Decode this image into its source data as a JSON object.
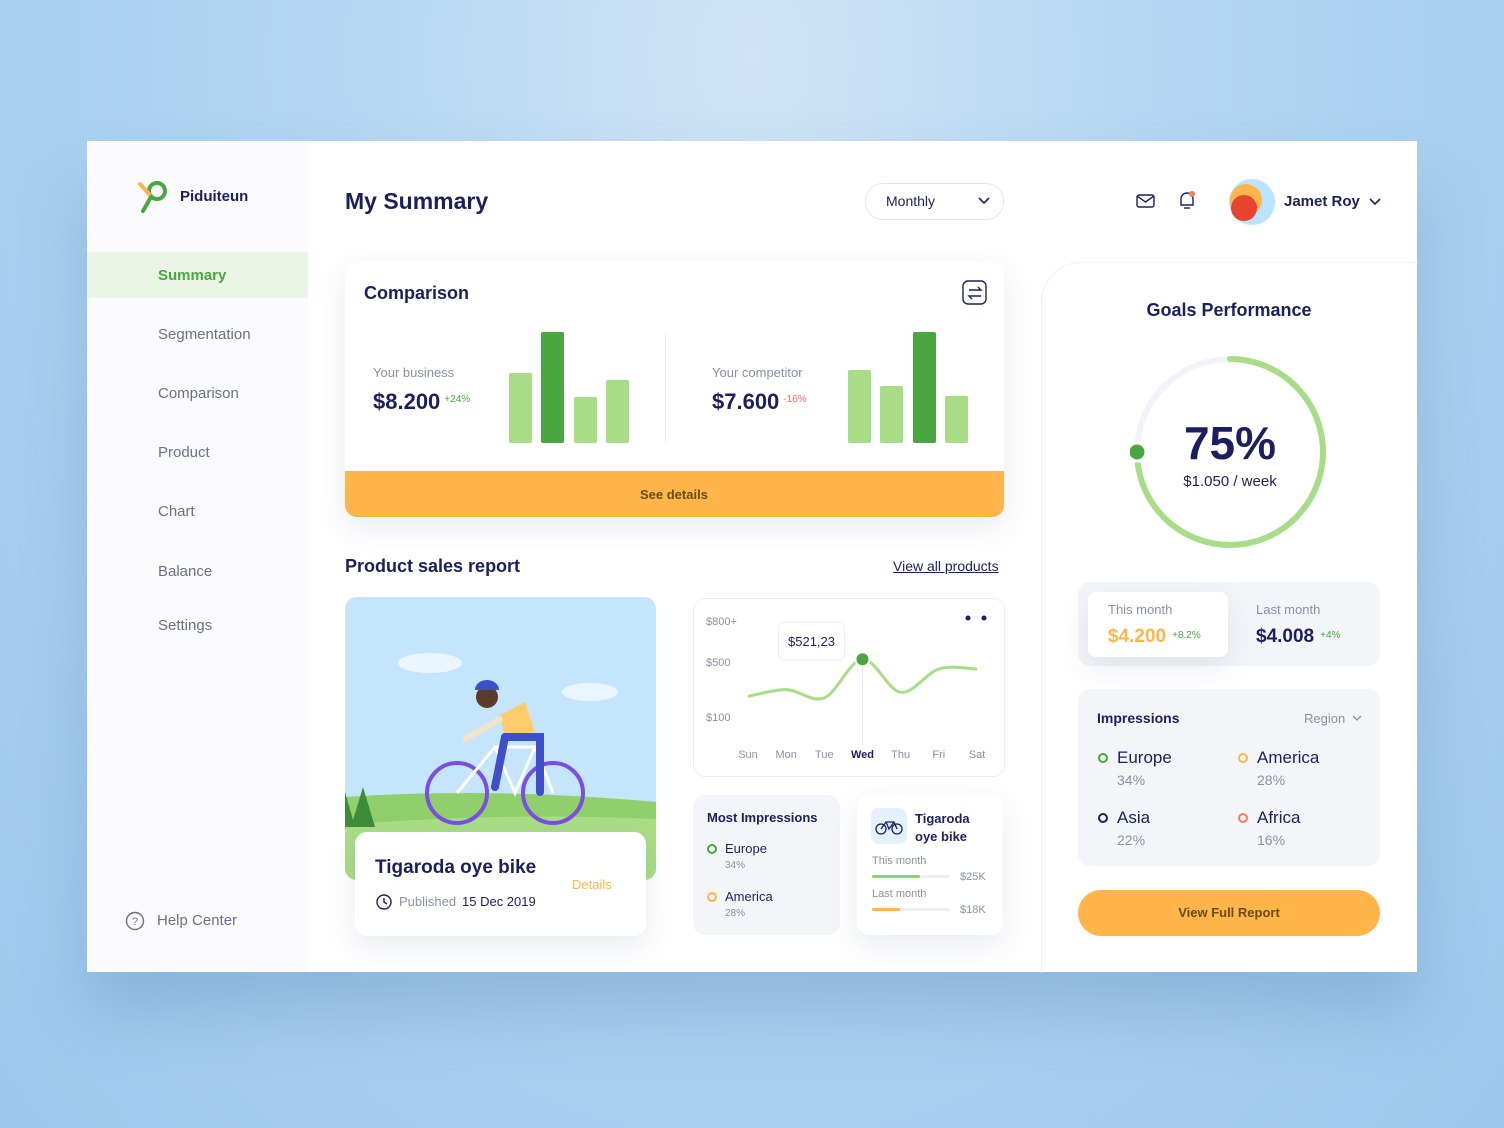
{
  "brand": "Piduiteun",
  "nav": {
    "items": [
      "Summary",
      "Segmentation",
      "Comparison",
      "Product",
      "Chart",
      "Balance",
      "Settings"
    ],
    "active": 0,
    "help": "Help Center"
  },
  "header": {
    "title": "My Summary",
    "period": "Monthly",
    "user": "Jamet Roy"
  },
  "comparison": {
    "title": "Comparison",
    "groups": [
      {
        "label": "Your business",
        "value": "$8.200",
        "change": "+24%",
        "bars": [
          70,
          111,
          46,
          63
        ],
        "highlight": 1
      },
      {
        "label": "Your competitor",
        "value": "$7.600",
        "change": "-16%",
        "bars": [
          73,
          57,
          111,
          47
        ],
        "highlight": 2
      }
    ],
    "action": "See details"
  },
  "sales": {
    "title": "Product sales report",
    "link": "View all products",
    "product": {
      "name": "Tigaroda oye bike",
      "published": "Published",
      "date": "15 Dec 2019",
      "action": "Details"
    },
    "chart": {
      "type": "line",
      "categories": [
        "Sun",
        "Mon",
        "Tue",
        "Wed",
        "Thu",
        "Fri",
        "Sat"
      ],
      "values": [
        250,
        300,
        240,
        521.23,
        280,
        450,
        450
      ],
      "value_labels": [
        null,
        null,
        null,
        "$521,23",
        null,
        null,
        null
      ],
      "highlight": 3,
      "ylim": [
        0,
        800
      ],
      "yticks": [
        {
          "value": 100,
          "label": "$100"
        },
        {
          "value": 500,
          "label": "$500"
        },
        {
          "value": 800,
          "label": "$800+"
        }
      ],
      "color": "#a8dc86"
    },
    "most_impressions": {
      "title": "Most Impressions",
      "items": [
        {
          "name": "Europe",
          "share": "34%",
          "color": "#4aa640"
        },
        {
          "name": "America",
          "share": "28%",
          "color": "#ffb54a"
        }
      ]
    },
    "product_card": {
      "name": "Tigaroda oye bike",
      "rows": [
        {
          "label": "This month",
          "value": "$25K",
          "fill": 62,
          "color": "#8bd36b"
        },
        {
          "label": "Last month",
          "value": "$18K",
          "fill": 36,
          "color": "#ffb54a"
        }
      ]
    }
  },
  "goals": {
    "title": "Goals Performance",
    "percent": {
      "value": 75,
      "label": "75%"
    },
    "rate": "$1.050 / week",
    "periods": [
      {
        "label": "This month",
        "value": "$4.200",
        "change": "+8.2%"
      },
      {
        "label": "Last month",
        "value": "$4.008",
        "change": "+4%"
      }
    ]
  },
  "impressions": {
    "title": "Impressions",
    "filter": "Region",
    "items": [
      {
        "name": "Europe",
        "share": "34%",
        "color": "#4aa640"
      },
      {
        "name": "America",
        "share": "28%",
        "color": "#ffb54a"
      },
      {
        "name": "Asia",
        "share": "22%",
        "color": "#1b1f5e"
      },
      {
        "name": "Africa",
        "share": "16%",
        "color": "#ff7a5a"
      }
    ]
  },
  "action": "View Full Report"
}
